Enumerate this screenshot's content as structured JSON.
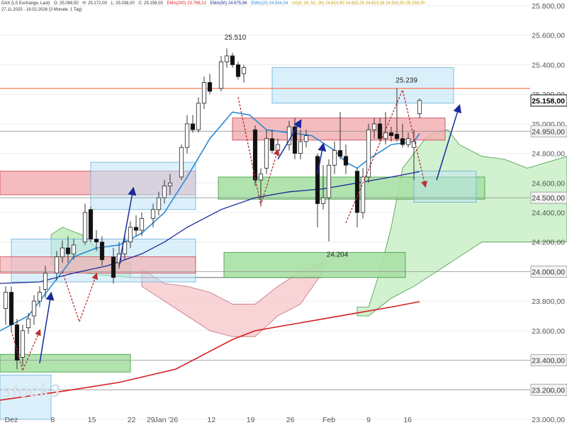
{
  "header": {
    "symbol_line": "DAX (LS Exchange, Last)",
    "open": "O: 25.069,50",
    "high": "H: 25.172,00",
    "low": "L: 25.038,00",
    "close": "C: 25.158,00",
    "ema200": "EMA(200) 23.796,21",
    "ema50": "EMA(50) 24.675,96",
    "ema10": "EMA(10) 24.934,04",
    "ichimoku": "Ich(9, 26, 52, 26) 24.814,50 24.832,25 24.623,38 24.542,50 25.158,00",
    "range_line": "27.11.2025 - 18.02.2026 (3 Monate, 1 Tag)"
  },
  "colors": {
    "ema200": "#d42020",
    "ema50": "#1a2a9a",
    "ema10": "#2a8ad4",
    "up_candle": "#ffffff",
    "down_candle": "#111111",
    "resistance_line": "#ff6a3a",
    "signal_arrow": "#1a2a9a",
    "zigzag": "#b83030"
  },
  "annotations": {
    "high_label": "25.510",
    "recent_high_label": "25.239",
    "low_label": "24.204",
    "watermark": "stock3"
  },
  "chart_data": {
    "type": "candlestick",
    "title": "DAX (LS Exchange, Last)",
    "ylim": [
      23000,
      25800
    ],
    "y_ticks": [
      "25.800,00",
      "25.600,00",
      "25.400,00",
      "25.200,00",
      "25.000,00",
      "24.800,00",
      "24.600,00",
      "24.400,00",
      "24.200,00",
      "24.000,00",
      "23.800,00",
      "23.600,00",
      "23.400,00",
      "23.200,00",
      "23.000,00"
    ],
    "x_tick_labels": [
      "Dez",
      "8",
      "15",
      "22",
      "29",
      "Jan '26",
      "12",
      "19",
      "26",
      "Feb",
      "9",
      "16"
    ],
    "price_labels": [
      {
        "value": 25158,
        "label": "25.158,00",
        "style": "current"
      },
      {
        "value": 24950,
        "label": "24.950,00",
        "style": "level"
      },
      {
        "value": 24500,
        "label": "24.500,00",
        "style": "level"
      },
      {
        "value": 24000,
        "label": "24.000,00",
        "style": "level"
      },
      {
        "value": 23400,
        "label": "23.400,00",
        "style": "level"
      },
      {
        "value": 23200,
        "label": "23.200,00",
        "style": "level"
      }
    ],
    "horizontal_lines": [
      {
        "value": 25240,
        "color": "#ff6a3a"
      },
      {
        "value": 24950,
        "color": "#888888"
      },
      {
        "value": 24500,
        "color": "#888888"
      },
      {
        "value": 24000,
        "color": "#888888"
      },
      {
        "value": 23400,
        "color": "#888888"
      },
      {
        "value": 23200,
        "color": "#888888"
      }
    ],
    "candles": [
      {
        "t": 0,
        "o": 23750,
        "h": 23900,
        "l": 23640,
        "c": 23860
      },
      {
        "t": 1,
        "o": 23860,
        "h": 23900,
        "l": 23600,
        "c": 23640
      },
      {
        "t": 2,
        "o": 23640,
        "h": 23680,
        "l": 23340,
        "c": 23400
      },
      {
        "t": 3,
        "o": 23420,
        "h": 23640,
        "l": 23360,
        "c": 23600
      },
      {
        "t": 4,
        "o": 23620,
        "h": 23720,
        "l": 23580,
        "c": 23680
      },
      {
        "t": 5,
        "o": 23700,
        "h": 23840,
        "l": 23640,
        "c": 23800
      },
      {
        "t": 6,
        "o": 23800,
        "h": 23900,
        "l": 23760,
        "c": 23860
      },
      {
        "t": 7,
        "o": 23880,
        "h": 24040,
        "l": 23820,
        "c": 23990
      },
      {
        "t": 9,
        "o": 23990,
        "h": 24140,
        "l": 23940,
        "c": 24100
      },
      {
        "t": 10,
        "o": 24100,
        "h": 24210,
        "l": 24060,
        "c": 24160
      },
      {
        "t": 11,
        "o": 24160,
        "h": 24240,
        "l": 24060,
        "c": 24120
      },
      {
        "t": 12,
        "o": 24120,
        "h": 24220,
        "l": 24080,
        "c": 24180
      },
      {
        "t": 14,
        "o": 24200,
        "h": 24460,
        "l": 24180,
        "c": 24400
      },
      {
        "t": 15,
        "o": 24420,
        "h": 24440,
        "l": 24200,
        "c": 24220
      },
      {
        "t": 16,
        "o": 24220,
        "h": 24280,
        "l": 24140,
        "c": 24200
      },
      {
        "t": 17,
        "o": 24200,
        "h": 24240,
        "l": 24040,
        "c": 24080
      },
      {
        "t": 19,
        "o": 24100,
        "h": 24160,
        "l": 23920,
        "c": 23960
      },
      {
        "t": 20,
        "o": 24060,
        "h": 24200,
        "l": 24020,
        "c": 24120
      },
      {
        "t": 21,
        "o": 24120,
        "h": 24260,
        "l": 24080,
        "c": 24200
      },
      {
        "t": 22,
        "o": 24200,
        "h": 24340,
        "l": 24160,
        "c": 24300
      },
      {
        "t": 23,
        "o": 24300,
        "h": 24380,
        "l": 24240,
        "c": 24280
      },
      {
        "t": 24,
        "o": 24280,
        "h": 24400,
        "l": 24240,
        "c": 24360
      },
      {
        "t": 26,
        "o": 24360,
        "h": 24460,
        "l": 24300,
        "c": 24420
      },
      {
        "t": 27,
        "o": 24420,
        "h": 24540,
        "l": 24380,
        "c": 24500
      },
      {
        "t": 28,
        "o": 24500,
        "h": 24620,
        "l": 24460,
        "c": 24580
      },
      {
        "t": 29,
        "o": 24580,
        "h": 24660,
        "l": 24520,
        "c": 24600
      },
      {
        "t": 31,
        "o": 24640,
        "h": 24860,
        "l": 24620,
        "c": 24840
      },
      {
        "t": 32,
        "o": 24840,
        "h": 25060,
        "l": 24800,
        "c": 25000
      },
      {
        "t": 33,
        "o": 25000,
        "h": 25060,
        "l": 24940,
        "c": 24960
      },
      {
        "t": 34,
        "o": 24960,
        "h": 25180,
        "l": 24940,
        "c": 25140
      },
      {
        "t": 35,
        "o": 25140,
        "h": 25320,
        "l": 25100,
        "c": 25280
      },
      {
        "t": 36,
        "o": 25280,
        "h": 25340,
        "l": 25200,
        "c": 25220
      },
      {
        "t": 38,
        "o": 25240,
        "h": 25460,
        "l": 25220,
        "c": 25420
      },
      {
        "t": 39,
        "o": 25420,
        "h": 25510,
        "l": 25380,
        "c": 25460
      },
      {
        "t": 40,
        "o": 25460,
        "h": 25480,
        "l": 25380,
        "c": 25400
      },
      {
        "t": 41,
        "o": 25400,
        "h": 25420,
        "l": 25300,
        "c": 25320
      },
      {
        "t": 42,
        "o": 25340,
        "h": 25400,
        "l": 25280,
        "c": 25380
      },
      {
        "t": 44,
        "o": 24960,
        "h": 24990,
        "l": 24580,
        "c": 24620
      },
      {
        "t": 45,
        "o": 24620,
        "h": 24700,
        "l": 24440,
        "c": 24660
      },
      {
        "t": 46,
        "o": 24700,
        "h": 24960,
        "l": 24660,
        "c": 24900
      },
      {
        "t": 47,
        "o": 24900,
        "h": 24960,
        "l": 24800,
        "c": 24820
      },
      {
        "t": 48,
        "o": 24820,
        "h": 24900,
        "l": 24780,
        "c": 24860
      },
      {
        "t": 50,
        "o": 24860,
        "h": 25020,
        "l": 24820,
        "c": 24980
      },
      {
        "t": 51,
        "o": 24980,
        "h": 25040,
        "l": 24760,
        "c": 24800
      },
      {
        "t": 52,
        "o": 24800,
        "h": 24960,
        "l": 24760,
        "c": 24880
      },
      {
        "t": 53,
        "o": 24880,
        "h": 24960,
        "l": 24840,
        "c": 24920
      },
      {
        "t": 55,
        "o": 24780,
        "h": 24800,
        "l": 24300,
        "c": 24460
      },
      {
        "t": 56,
        "o": 24460,
        "h": 24720,
        "l": 24420,
        "c": 24500
      },
      {
        "t": 57,
        "o": 24500,
        "h": 24760,
        "l": 24204,
        "c": 24720
      },
      {
        "t": 58,
        "o": 24720,
        "h": 24880,
        "l": 24660,
        "c": 24820
      },
      {
        "t": 59,
        "o": 24820,
        "h": 25080,
        "l": 24760,
        "c": 24780
      },
      {
        "t": 60,
        "o": 24780,
        "h": 24860,
        "l": 24660,
        "c": 24720
      },
      {
        "t": 62,
        "o": 24680,
        "h": 24700,
        "l": 24300,
        "c": 24400
      },
      {
        "t": 63,
        "o": 24400,
        "h": 24700,
        "l": 24360,
        "c": 24640
      },
      {
        "t": 64,
        "o": 24640,
        "h": 25000,
        "l": 24600,
        "c": 24960
      },
      {
        "t": 65,
        "o": 24960,
        "h": 25040,
        "l": 24900,
        "c": 25000
      },
      {
        "t": 66,
        "o": 25000,
        "h": 25040,
        "l": 24880,
        "c": 24900
      },
      {
        "t": 67,
        "o": 24900,
        "h": 25080,
        "l": 24860,
        "c": 24940
      },
      {
        "t": 68,
        "o": 24940,
        "h": 24980,
        "l": 24880,
        "c": 24920
      },
      {
        "t": 69,
        "o": 24930,
        "h": 25239,
        "l": 24880,
        "c": 24900
      },
      {
        "t": 70,
        "o": 24900,
        "h": 25000,
        "l": 24840,
        "c": 24860
      },
      {
        "t": 71,
        "o": 24860,
        "h": 24940,
        "l": 24840,
        "c": 24900
      },
      {
        "t": 72,
        "o": 24840,
        "h": 24960,
        "l": 24620,
        "c": 24880
      },
      {
        "t": 73,
        "o": 25069.5,
        "h": 25172,
        "l": 25038,
        "c": 25158
      }
    ]
  }
}
